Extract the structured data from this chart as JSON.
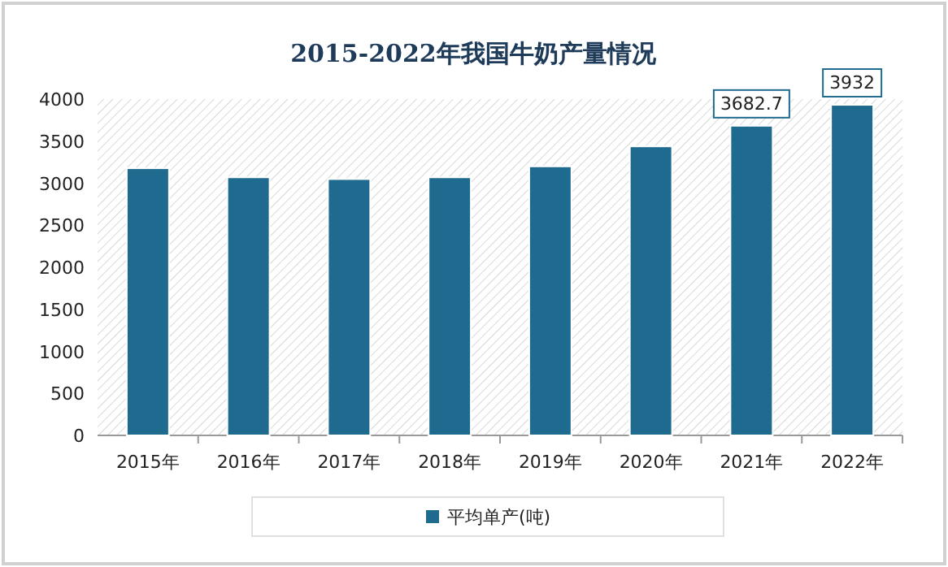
{
  "chart_data": {
    "type": "bar",
    "title": "2015-2022年我国牛奶产量情况",
    "categories": [
      "2015年",
      "2016年",
      "2017年",
      "2018年",
      "2019年",
      "2020年",
      "2021年",
      "2022年"
    ],
    "series": [
      {
        "name": "平均单产(吨)",
        "color": "#1f6b8f",
        "values": [
          3178,
          3070,
          3049,
          3070,
          3200,
          3438,
          3682.7,
          3932
        ],
        "value_labels": [
          null,
          null,
          null,
          null,
          null,
          null,
          "3682.7",
          "3932"
        ]
      }
    ],
    "ylim": [
      0,
      4000
    ],
    "yticks": [
      0,
      500,
      1000,
      1500,
      2000,
      2500,
      3000,
      3500,
      4000
    ],
    "grid": false,
    "legend": "bottom"
  }
}
